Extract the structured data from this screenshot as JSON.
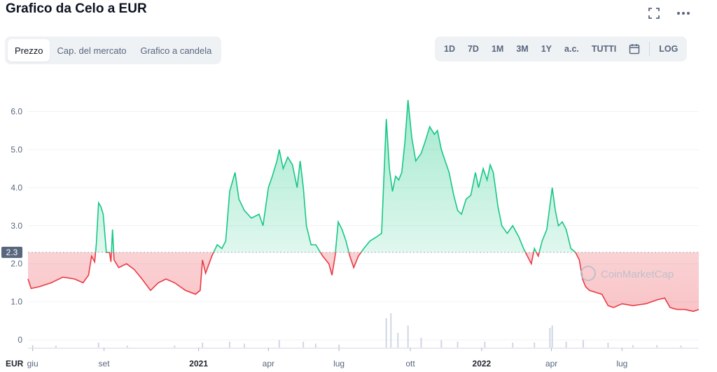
{
  "title": "Grafico da Celo a EUR",
  "tabs": [
    {
      "label": "Prezzo",
      "active": true
    },
    {
      "label": "Cap. del mercato",
      "active": false
    },
    {
      "label": "Grafico a candela",
      "active": false
    }
  ],
  "ranges": [
    "1D",
    "7D",
    "1M",
    "3M",
    "1Y",
    "a.c.",
    "TUTTI"
  ],
  "log_label": "LOG",
  "icons": {
    "fullscreen": "fullscreen-icon",
    "more": "more-dots-icon",
    "calendar": "calendar-icon"
  },
  "colors": {
    "up": "#16c784",
    "down": "#ea3943",
    "baseline": "#a6b0c3"
  },
  "watermark": "CoinMarketCap",
  "chart_data": {
    "type": "area",
    "y_unit_label": "EUR",
    "ylim": [
      -0.2,
      7.0
    ],
    "y_ticks": [
      0,
      1.0,
      2.0,
      3.0,
      4.0,
      5.0,
      6.0
    ],
    "baseline_value": 2.3,
    "baseline_label": "2.3",
    "x_ticks": [
      {
        "label": "giu",
        "date": "2020-06-01",
        "bold": false
      },
      {
        "label": "set",
        "date": "2020-09-01",
        "bold": false
      },
      {
        "label": "2021",
        "date": "2021-01-01",
        "bold": true
      },
      {
        "label": "apr",
        "date": "2021-04-01",
        "bold": false
      },
      {
        "label": "lug",
        "date": "2021-07-01",
        "bold": false
      },
      {
        "label": "ott",
        "date": "2021-10-01",
        "bold": false
      },
      {
        "label": "2022",
        "date": "2022-01-01",
        "bold": true
      },
      {
        "label": "apr",
        "date": "2022-04-01",
        "bold": false
      },
      {
        "label": "lug",
        "date": "2022-07-01",
        "bold": false
      }
    ],
    "series": [
      {
        "points": [
          [
            "2020-05-26",
            1.6
          ],
          [
            "2020-05-30",
            1.35
          ],
          [
            "2020-06-10",
            1.4
          ],
          [
            "2020-06-25",
            1.5
          ],
          [
            "2020-07-10",
            1.65
          ],
          [
            "2020-07-25",
            1.6
          ],
          [
            "2020-08-05",
            1.5
          ],
          [
            "2020-08-12",
            1.7
          ],
          [
            "2020-08-16",
            2.2
          ],
          [
            "2020-08-20",
            2.05
          ],
          [
            "2020-08-22",
            2.5
          ],
          [
            "2020-08-25",
            3.6
          ],
          [
            "2020-08-28",
            3.5
          ],
          [
            "2020-08-31",
            3.3
          ],
          [
            "2020-09-04",
            2.3
          ],
          [
            "2020-09-08",
            2.3
          ],
          [
            "2020-09-10",
            2.05
          ],
          [
            "2020-09-12",
            2.9
          ],
          [
            "2020-09-14",
            2.1
          ],
          [
            "2020-09-20",
            1.9
          ],
          [
            "2020-09-30",
            2.0
          ],
          [
            "2020-10-10",
            1.85
          ],
          [
            "2020-10-20",
            1.6
          ],
          [
            "2020-10-31",
            1.3
          ],
          [
            "2020-11-10",
            1.5
          ],
          [
            "2020-11-20",
            1.6
          ],
          [
            "2020-12-01",
            1.5
          ],
          [
            "2020-12-15",
            1.3
          ],
          [
            "2020-12-28",
            1.2
          ],
          [
            "2021-01-03",
            1.3
          ],
          [
            "2021-01-06",
            2.1
          ],
          [
            "2021-01-10",
            1.75
          ],
          [
            "2021-01-18",
            2.2
          ],
          [
            "2021-01-25",
            2.5
          ],
          [
            "2021-01-31",
            2.4
          ],
          [
            "2021-02-05",
            2.6
          ],
          [
            "2021-02-10",
            3.9
          ],
          [
            "2021-02-17",
            4.4
          ],
          [
            "2021-02-22",
            3.7
          ],
          [
            "2021-03-01",
            3.4
          ],
          [
            "2021-03-10",
            3.2
          ],
          [
            "2021-03-20",
            3.3
          ],
          [
            "2021-03-25",
            3.0
          ],
          [
            "2021-04-01",
            4.0
          ],
          [
            "2021-04-06",
            4.3
          ],
          [
            "2021-04-12",
            4.7
          ],
          [
            "2021-04-15",
            5.0
          ],
          [
            "2021-04-20",
            4.5
          ],
          [
            "2021-04-26",
            4.8
          ],
          [
            "2021-05-02",
            4.6
          ],
          [
            "2021-05-08",
            4.0
          ],
          [
            "2021-05-12",
            4.7
          ],
          [
            "2021-05-16",
            4.0
          ],
          [
            "2021-05-20",
            3.0
          ],
          [
            "2021-05-26",
            2.5
          ],
          [
            "2021-06-01",
            2.5
          ],
          [
            "2021-06-10",
            2.2
          ],
          [
            "2021-06-18",
            2.0
          ],
          [
            "2021-06-22",
            1.7
          ],
          [
            "2021-06-26",
            2.2
          ],
          [
            "2021-06-30",
            3.1
          ],
          [
            "2021-07-05",
            2.9
          ],
          [
            "2021-07-10",
            2.6
          ],
          [
            "2021-07-15",
            2.2
          ],
          [
            "2021-07-20",
            1.9
          ],
          [
            "2021-07-26",
            2.2
          ],
          [
            "2021-08-02",
            2.4
          ],
          [
            "2021-08-10",
            2.6
          ],
          [
            "2021-08-18",
            2.7
          ],
          [
            "2021-08-25",
            2.8
          ],
          [
            "2021-08-31",
            5.8
          ],
          [
            "2021-09-04",
            4.5
          ],
          [
            "2021-09-08",
            3.9
          ],
          [
            "2021-09-12",
            4.3
          ],
          [
            "2021-09-16",
            4.2
          ],
          [
            "2021-09-20",
            4.4
          ],
          [
            "2021-09-24",
            5.2
          ],
          [
            "2021-09-28",
            6.3
          ],
          [
            "2021-10-03",
            5.3
          ],
          [
            "2021-10-08",
            4.7
          ],
          [
            "2021-10-15",
            4.9
          ],
          [
            "2021-10-20",
            5.2
          ],
          [
            "2021-10-26",
            5.6
          ],
          [
            "2021-11-01",
            5.4
          ],
          [
            "2021-11-05",
            5.5
          ],
          [
            "2021-11-10",
            5.0
          ],
          [
            "2021-11-15",
            4.7
          ],
          [
            "2021-11-20",
            4.4
          ],
          [
            "2021-11-26",
            3.8
          ],
          [
            "2021-12-01",
            3.4
          ],
          [
            "2021-12-06",
            3.3
          ],
          [
            "2021-12-12",
            3.7
          ],
          [
            "2021-12-18",
            3.8
          ],
          [
            "2021-12-24",
            4.4
          ],
          [
            "2021-12-28",
            4.0
          ],
          [
            "2022-01-03",
            4.5
          ],
          [
            "2022-01-08",
            4.2
          ],
          [
            "2022-01-12",
            4.6
          ],
          [
            "2022-01-16",
            4.4
          ],
          [
            "2022-01-22",
            3.5
          ],
          [
            "2022-01-27",
            3.0
          ],
          [
            "2022-02-03",
            2.8
          ],
          [
            "2022-02-10",
            3.0
          ],
          [
            "2022-02-18",
            2.7
          ],
          [
            "2022-02-24",
            2.4
          ],
          [
            "2022-03-01",
            2.2
          ],
          [
            "2022-03-06",
            2.0
          ],
          [
            "2022-03-10",
            2.4
          ],
          [
            "2022-03-15",
            2.2
          ],
          [
            "2022-03-20",
            2.6
          ],
          [
            "2022-03-26",
            2.9
          ],
          [
            "2022-04-02",
            4.0
          ],
          [
            "2022-04-06",
            3.4
          ],
          [
            "2022-04-10",
            3.0
          ],
          [
            "2022-04-15",
            3.1
          ],
          [
            "2022-04-20",
            2.9
          ],
          [
            "2022-04-26",
            2.4
          ],
          [
            "2022-05-02",
            2.3
          ],
          [
            "2022-05-07",
            2.1
          ],
          [
            "2022-05-11",
            1.6
          ],
          [
            "2022-05-15",
            1.4
          ],
          [
            "2022-05-20",
            1.3
          ],
          [
            "2022-05-28",
            1.25
          ],
          [
            "2022-06-05",
            1.2
          ],
          [
            "2022-06-13",
            0.9
          ],
          [
            "2022-06-20",
            0.85
          ],
          [
            "2022-07-01",
            0.95
          ],
          [
            "2022-07-15",
            0.9
          ],
          [
            "2022-08-01",
            0.95
          ],
          [
            "2022-08-15",
            1.05
          ],
          [
            "2022-08-25",
            1.1
          ],
          [
            "2022-09-01",
            0.85
          ],
          [
            "2022-09-10",
            0.8
          ],
          [
            "2022-09-20",
            0.8
          ],
          [
            "2022-10-01",
            0.75
          ],
          [
            "2022-10-08",
            0.8
          ]
        ]
      }
    ],
    "volume": [
      [
        "2020-06-01",
        0.05
      ],
      [
        "2020-07-01",
        0.04
      ],
      [
        "2020-08-25",
        0.1
      ],
      [
        "2020-10-01",
        0.04
      ],
      [
        "2020-12-01",
        0.04
      ],
      [
        "2021-01-06",
        0.1
      ],
      [
        "2021-02-10",
        0.12
      ],
      [
        "2021-03-01",
        0.08
      ],
      [
        "2021-04-15",
        0.15
      ],
      [
        "2021-05-16",
        0.12
      ],
      [
        "2021-06-01",
        0.08
      ],
      [
        "2021-07-01",
        0.06
      ],
      [
        "2021-08-31",
        0.6
      ],
      [
        "2021-09-06",
        0.7
      ],
      [
        "2021-09-15",
        0.3
      ],
      [
        "2021-09-28",
        0.45
      ],
      [
        "2021-10-15",
        0.2
      ],
      [
        "2021-11-10",
        0.15
      ],
      [
        "2021-12-01",
        0.12
      ],
      [
        "2022-01-05",
        0.12
      ],
      [
        "2022-02-10",
        0.1
      ],
      [
        "2022-03-10",
        0.1
      ],
      [
        "2022-03-30",
        0.4
      ],
      [
        "2022-04-02",
        0.45
      ],
      [
        "2022-04-20",
        0.12
      ],
      [
        "2022-05-12",
        0.15
      ],
      [
        "2022-06-13",
        0.1
      ],
      [
        "2022-07-15",
        0.05
      ],
      [
        "2022-08-15",
        0.05
      ],
      [
        "2022-09-15",
        0.04
      ]
    ]
  }
}
